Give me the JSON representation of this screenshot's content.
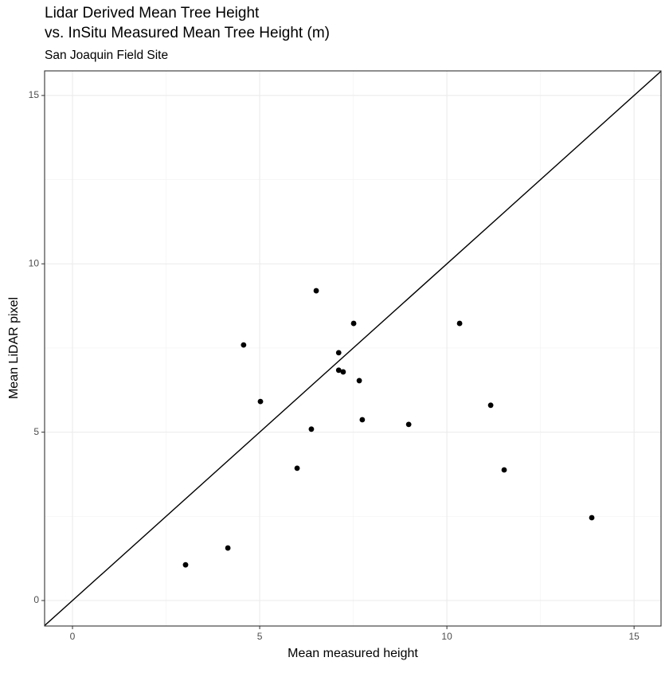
{
  "chart_data": {
    "type": "scatter",
    "title": "Lidar Derived Mean Tree Height\nvs. InSitu Measured Mean Tree Height (m)",
    "subtitle": "San Joaquin Field Site",
    "x_label": "Mean measured height",
    "y_label": "Mean LiDAR pixel",
    "x": [
      3.02,
      4.15,
      4.57,
      5.02,
      6.0,
      6.38,
      6.51,
      7.11,
      7.11,
      7.23,
      7.51,
      7.66,
      7.74,
      8.98,
      10.34,
      11.17,
      11.53,
      13.87
    ],
    "series": [
      {
        "color": "#000000",
        "values": [
          1.06,
          1.56,
          7.59,
          5.91,
          3.93,
          5.09,
          9.2,
          7.36,
          6.84,
          6.79,
          8.23,
          6.53,
          5.37,
          5.23,
          8.23,
          5.8,
          3.88,
          2.46
        ]
      }
    ],
    "xlim": [
      -0.745,
      15.72
    ],
    "ylim": [
      -0.757,
      15.73
    ],
    "xticks": [
      0,
      5,
      10,
      15
    ],
    "yticks": [
      0,
      5,
      10,
      15
    ],
    "minor_xticks": [
      2.5,
      7.5,
      12.5
    ],
    "minor_yticks": [
      2.5,
      7.5,
      12.5
    ],
    "grid": true,
    "reference_line": {
      "slope": 1,
      "intercept": 0,
      "color": "#000000"
    }
  }
}
